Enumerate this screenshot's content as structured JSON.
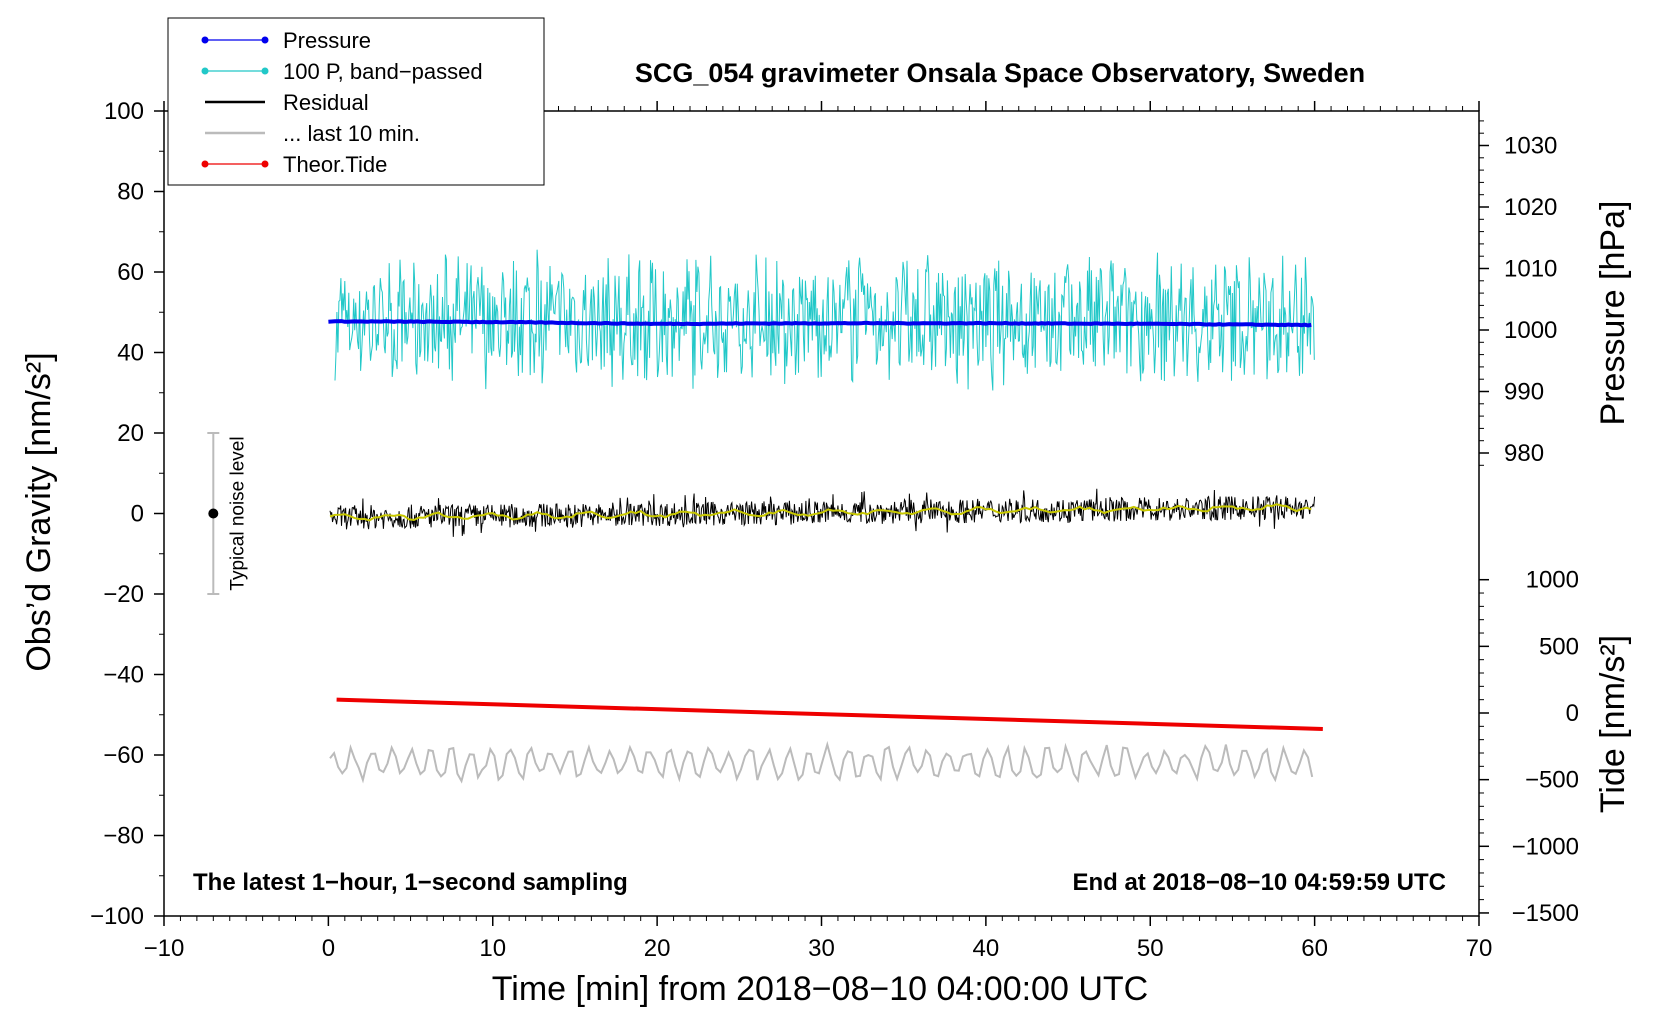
{
  "chart_data": {
    "type": "line",
    "title": "SCG_054 gravimeter Onsala Space Observatory, Sweden",
    "xlabel": "Time [min] from 2018−08−10 04:00:00 UTC",
    "ylabel_left": "Obs’d Gravity [nm/s²]",
    "ylabel_right_top": "Pressure [hPa]",
    "ylabel_right_bottom": "Tide [nm/s²]",
    "xlim": [
      -10,
      70
    ],
    "ylim": [
      -100,
      100
    ],
    "pressure_axis_range": [
      970,
      1035
    ],
    "tide_axis_range": [
      -1500,
      1500
    ],
    "x_ticks": [
      "−10",
      "0",
      "10",
      "20",
      "30",
      "40",
      "50",
      "60",
      "70"
    ],
    "x_tick_values": [
      -10,
      0,
      10,
      20,
      30,
      40,
      50,
      60,
      70
    ],
    "y_ticks_left": [
      "100",
      "80",
      "60",
      "40",
      "20",
      "0",
      "−20",
      "−40",
      "−60",
      "−80",
      "−100"
    ],
    "y_tick_values_left": [
      100,
      80,
      60,
      40,
      20,
      0,
      -20,
      -40,
      -60,
      -80,
      -100
    ],
    "pressure_ticks": [
      "1030",
      "1020",
      "1010",
      "1000",
      "990",
      "980"
    ],
    "pressure_tick_values": [
      1030,
      1020,
      1010,
      1000,
      990,
      980
    ],
    "tide_ticks": [
      "1000",
      "500",
      "0",
      "−500",
      "−1000",
      "−1500"
    ],
    "tide_tick_values": [
      1000,
      500,
      0,
      -500,
      -1000,
      -1500
    ],
    "legend": {
      "position": "top-left",
      "entries": [
        {
          "label": "Pressure",
          "color": "#0000ee",
          "marker": "dot"
        },
        {
          "label": "100 P, band−passed",
          "color": "#22c8c8",
          "marker": "dot"
        },
        {
          "label": "Residual",
          "color": "#000000",
          "marker": "none"
        },
        {
          "label": "... last 10 min.",
          "color": "#bbbbbb",
          "marker": "none"
        },
        {
          "label": "Theor.Tide",
          "color": "#ee0000",
          "marker": "dot"
        }
      ]
    },
    "noise_level": {
      "label": "Typical noise level",
      "x": -7,
      "y": 0,
      "error": 20
    },
    "annotation_left": "The latest 1−hour, 1−second sampling",
    "annotation_right": "End at 2018−08−10 04:59:59 UTC",
    "series": [
      {
        "name": "Pressure",
        "axis": "pressure",
        "x": [
          0,
          10,
          20,
          30,
          40,
          50,
          60
        ],
        "values": [
          1001.4,
          1001.3,
          1001.0,
          1001.1,
          1001.1,
          1001.0,
          1000.8
        ]
      },
      {
        "name": "100 P, band−passed",
        "axis": "gravity",
        "x_range": [
          0,
          60
        ],
        "center": 48,
        "amplitude": 24
      },
      {
        "name": "Residual",
        "axis": "gravity",
        "x_range": [
          0,
          60
        ],
        "start": -1,
        "end": 1.5,
        "amplitude": 3
      },
      {
        "name": "Residual smoothed",
        "axis": "gravity",
        "color": "#c8c800",
        "x_range": [
          0,
          60
        ],
        "start": -1,
        "end": 1.5
      },
      {
        "name": "Theor.Tide",
        "axis": "tide",
        "x": [
          0.5,
          60.5
        ],
        "values": [
          100,
          -120
        ]
      },
      {
        "name": "... last 10 min.",
        "axis": "gravity",
        "x_range": [
          0,
          60
        ],
        "center": -62,
        "amplitude": 4
      }
    ]
  }
}
